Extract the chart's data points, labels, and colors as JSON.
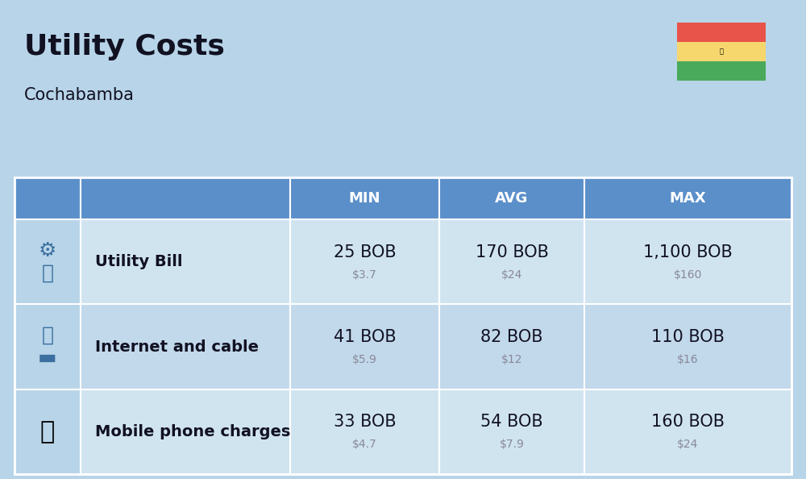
{
  "title": "Utility Costs",
  "subtitle": "Cochabamba",
  "bg_color": "#b8d4e8",
  "header_color": "#5b8fc9",
  "header_text_color": "#ffffff",
  "row_color": "#d0e4f0",
  "row_color_alt": "#c2d8eb",
  "icon_col_bg": "#b8d4e8",
  "text_color_main": "#111122",
  "text_color_sub": "#888899",
  "headers": [
    "MIN",
    "AVG",
    "MAX"
  ],
  "rows": [
    {
      "label": "Utility Bill",
      "icon": "utility",
      "min_bob": "25 BOB",
      "min_usd": "$3.7",
      "avg_bob": "170 BOB",
      "avg_usd": "$24",
      "max_bob": "1,100 BOB",
      "max_usd": "$160"
    },
    {
      "label": "Internet and cable",
      "icon": "internet",
      "min_bob": "41 BOB",
      "min_usd": "$5.9",
      "avg_bob": "82 BOB",
      "avg_usd": "$12",
      "max_bob": "110 BOB",
      "max_usd": "$16"
    },
    {
      "label": "Mobile phone charges",
      "icon": "mobile",
      "min_bob": "33 BOB",
      "min_usd": "$4.7",
      "avg_bob": "54 BOB",
      "avg_usd": "$7.9",
      "max_bob": "160 BOB",
      "max_usd": "$24"
    }
  ],
  "flag_colors": [
    "#e8534a",
    "#f5d76e",
    "#4aaa5c"
  ],
  "title_fontsize": 26,
  "subtitle_fontsize": 15,
  "header_fontsize": 13,
  "cell_fontsize_main": 15,
  "cell_fontsize_sub": 10,
  "label_fontsize": 14
}
